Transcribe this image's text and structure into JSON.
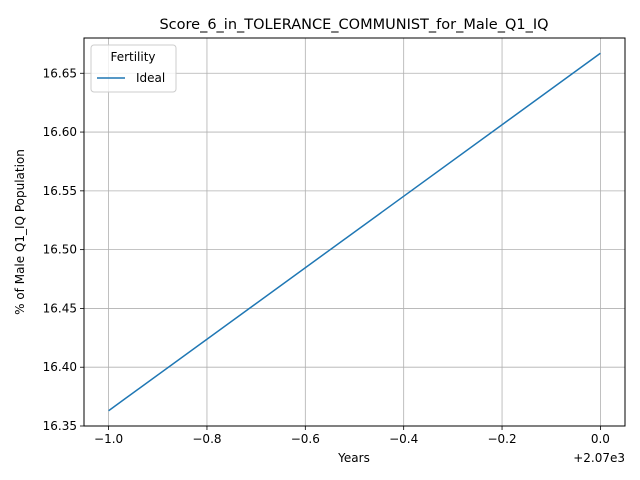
{
  "chart_data": {
    "type": "line",
    "title": "Score_6_in_TOLERANCE_COMMUNIST_for_Male_Q1_IQ",
    "xlabel": "Years",
    "ylabel": "% of Male Q1_IQ Population",
    "x_offset_label": "+2.07e3",
    "x_tick_labels": [
      "−1.0",
      "−0.8",
      "−0.6",
      "−0.4",
      "−0.2",
      "0.0"
    ],
    "y_tick_labels": [
      "16.35",
      "16.40",
      "16.45",
      "16.50",
      "16.55",
      "16.60",
      "16.65"
    ],
    "xlim": [
      2068.95,
      2070.05
    ],
    "ylim": [
      16.35,
      16.68
    ],
    "grid": true,
    "legend": {
      "title": "Fertility",
      "placement": "top-left"
    },
    "series": [
      {
        "name": "Ideal",
        "color": "#1f77b4",
        "x": [
          2069,
          2070
        ],
        "y": [
          16.363,
          16.667
        ]
      }
    ]
  }
}
